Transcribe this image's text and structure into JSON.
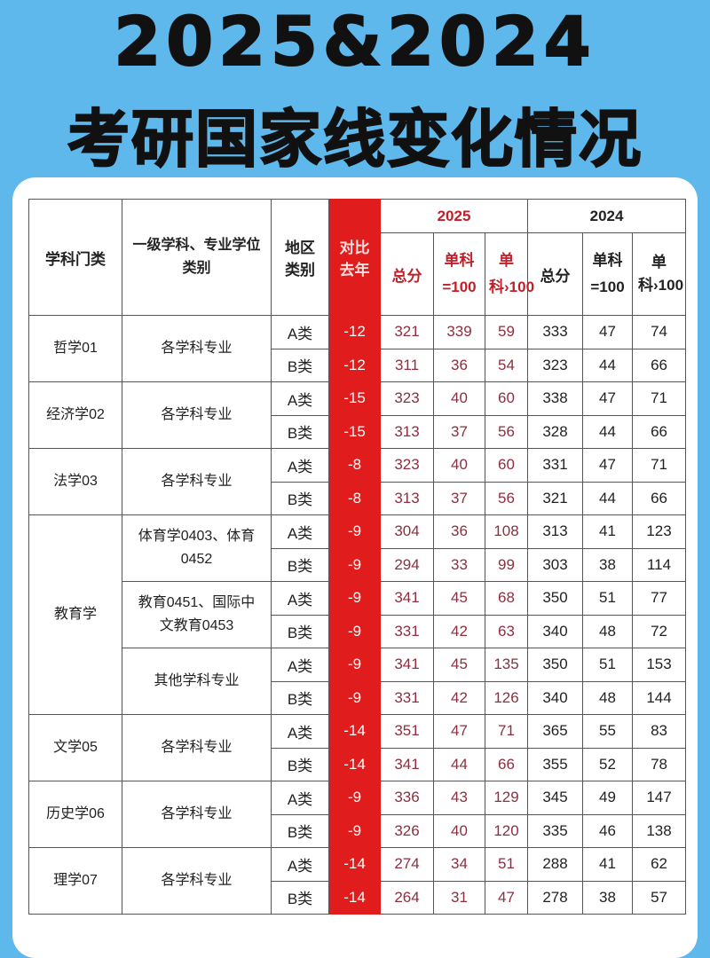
{
  "title": {
    "line1": "2025&2024",
    "line2": "考研国家线变化情况"
  },
  "colors": {
    "background": "#5fb8ec",
    "diff_column": "#e01c1c",
    "year2025_text": "#c0202a"
  },
  "headers": {
    "category": "学科门类",
    "subject": "一级学科、专业学位类别",
    "region": "地区类别",
    "diff": "对比去年",
    "year2025": "2025",
    "year2024": "2024",
    "total": "总分",
    "single_eq": "单科=100",
    "single_gt": "单科›100"
  },
  "groups": [
    {
      "category": "哲学01",
      "subs": [
        {
          "name": "各学科专业",
          "rows": [
            [
              "A类",
              "-12",
              "321",
              "339",
              "59",
              "333",
              "47",
              "74"
            ],
            [
              "B类",
              "-12",
              "311",
              "36",
              "54",
              "323",
              "44",
              "66"
            ]
          ]
        }
      ]
    },
    {
      "category": "经济学02",
      "subs": [
        {
          "name": "各学科专业",
          "rows": [
            [
              "A类",
              "-15",
              "323",
              "40",
              "60",
              "338",
              "47",
              "71"
            ],
            [
              "B类",
              "-15",
              "313",
              "37",
              "56",
              "328",
              "44",
              "66"
            ]
          ]
        }
      ]
    },
    {
      "category": "法学03",
      "subs": [
        {
          "name": "各学科专业",
          "rows": [
            [
              "A类",
              "-8",
              "323",
              "40",
              "60",
              "331",
              "47",
              "71"
            ],
            [
              "B类",
              "-8",
              "313",
              "37",
              "56",
              "321",
              "44",
              "66"
            ]
          ]
        }
      ]
    },
    {
      "category": "教育学",
      "subs": [
        {
          "name": "体育学0403、体育0452",
          "rows": [
            [
              "A类",
              "-9",
              "304",
              "36",
              "108",
              "313",
              "41",
              "123"
            ],
            [
              "B类",
              "-9",
              "294",
              "33",
              "99",
              "303",
              "38",
              "114"
            ]
          ]
        },
        {
          "name": "教育0451、国际中文教育0453",
          "rows": [
            [
              "A类",
              "-9",
              "341",
              "45",
              "68",
              "350",
              "51",
              "77"
            ],
            [
              "B类",
              "-9",
              "331",
              "42",
              "63",
              "340",
              "48",
              "72"
            ]
          ]
        },
        {
          "name": "其他学科专业",
          "rows": [
            [
              "A类",
              "-9",
              "341",
              "45",
              "135",
              "350",
              "51",
              "153"
            ],
            [
              "B类",
              "-9",
              "331",
              "42",
              "126",
              "340",
              "48",
              "144"
            ]
          ]
        }
      ]
    },
    {
      "category": "文学05",
      "subs": [
        {
          "name": "各学科专业",
          "rows": [
            [
              "A类",
              "-14",
              "351",
              "47",
              "71",
              "365",
              "55",
              "83"
            ],
            [
              "B类",
              "-14",
              "341",
              "44",
              "66",
              "355",
              "52",
              "78"
            ]
          ]
        }
      ]
    },
    {
      "category": "历史学06",
      "subs": [
        {
          "name": "各学科专业",
          "rows": [
            [
              "A类",
              "-9",
              "336",
              "43",
              "129",
              "345",
              "49",
              "147"
            ],
            [
              "B类",
              "-9",
              "326",
              "40",
              "120",
              "335",
              "46",
              "138"
            ]
          ]
        }
      ]
    },
    {
      "category": "理学07",
      "subs": [
        {
          "name": "各学科专业",
          "rows": [
            [
              "A类",
              "-14",
              "274",
              "34",
              "51",
              "288",
              "41",
              "62"
            ],
            [
              "B类",
              "-14",
              "264",
              "31",
              "47",
              "278",
              "38",
              "57"
            ]
          ]
        }
      ]
    }
  ]
}
